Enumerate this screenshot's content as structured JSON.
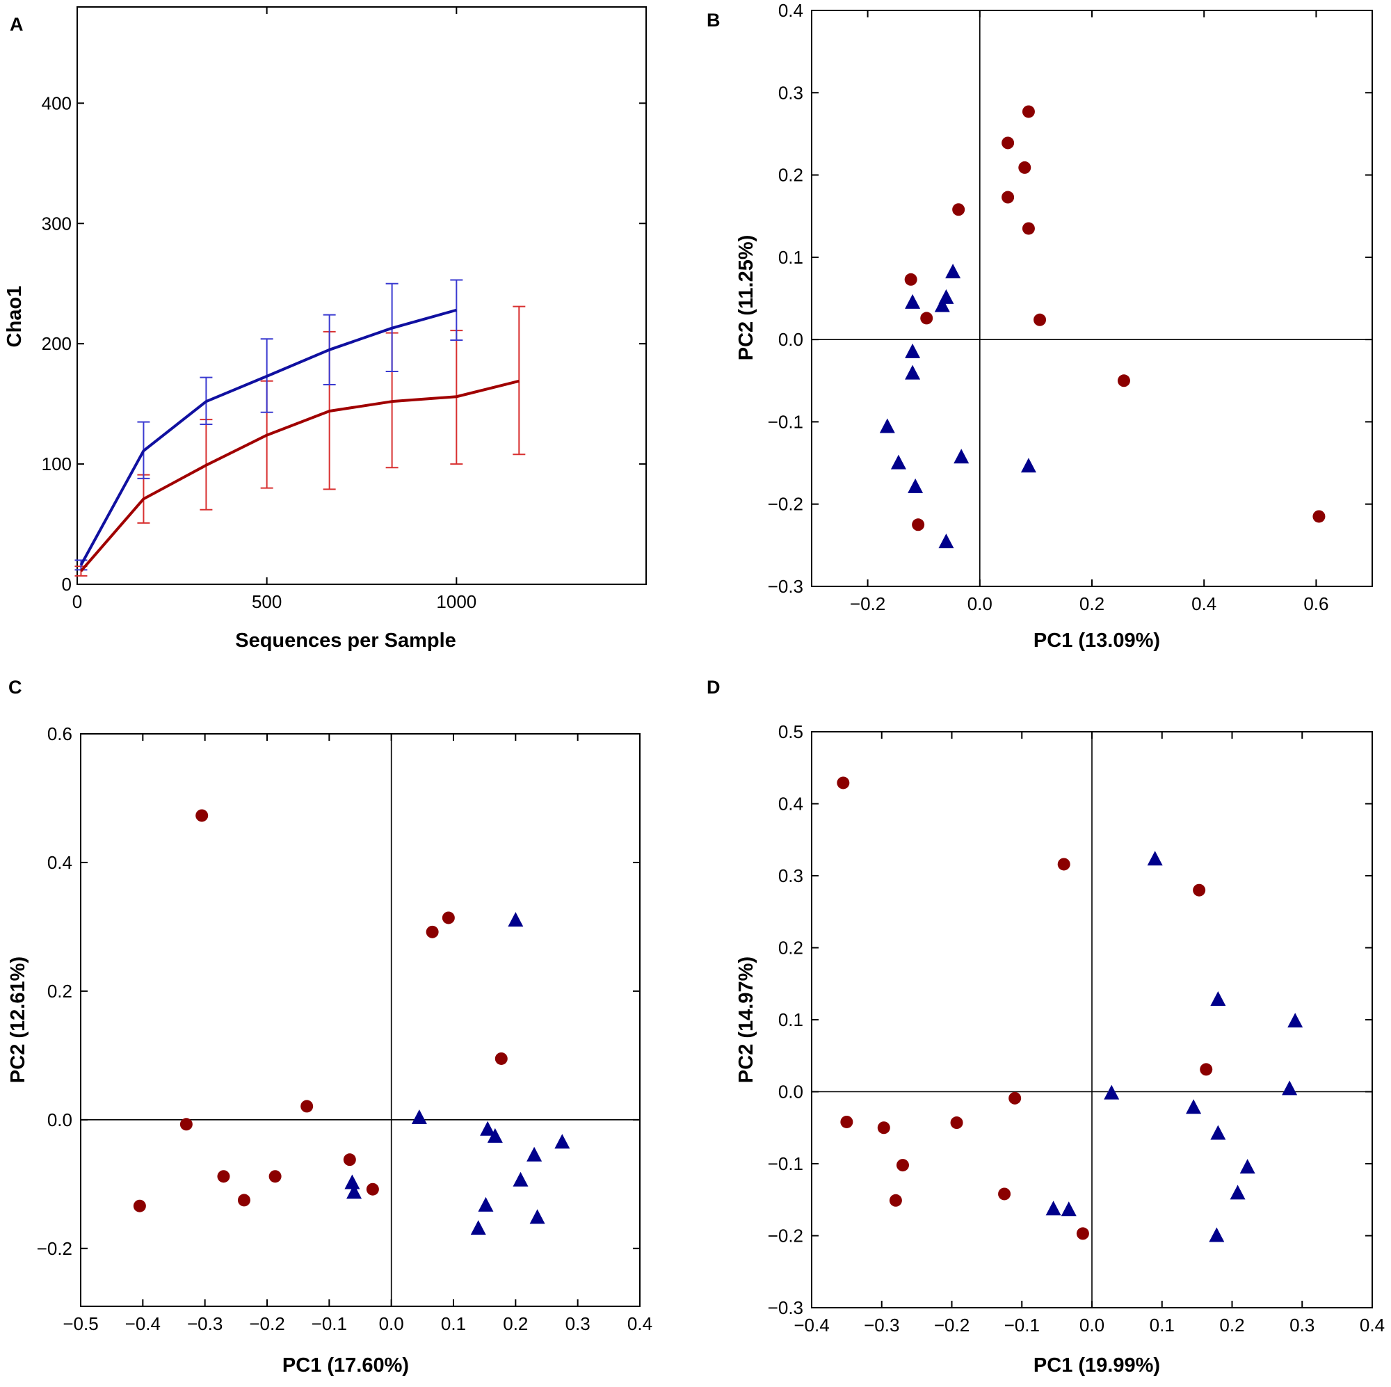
{
  "chart_data": [
    {
      "panel": "A",
      "type": "line",
      "xlabel": "Sequences per Sample",
      "ylabel": "Chao1",
      "xlim": [
        0,
        1500
      ],
      "ylim": [
        0,
        480
      ],
      "xticks": [
        0,
        500,
        1000
      ],
      "yticks": [
        0,
        100,
        200,
        300,
        400
      ],
      "grid": false,
      "colors": {
        "blue": "#1010a0",
        "red": "#a00000",
        "blue_err": "#3a3ad0",
        "red_err": "#d83030"
      },
      "series": [
        {
          "name": "blue",
          "x": [
            10,
            175,
            340,
            500,
            665,
            830,
            1000
          ],
          "y": [
            16,
            111,
            152,
            173,
            195,
            213,
            228
          ],
          "err_low": [
            12,
            88,
            133,
            143,
            166,
            177,
            203
          ],
          "err_high": [
            20,
            135,
            172,
            204,
            224,
            250,
            253
          ]
        },
        {
          "name": "red",
          "x": [
            10,
            175,
            340,
            500,
            665,
            830,
            1000,
            1165
          ],
          "y": [
            11,
            71,
            99,
            124,
            144,
            152,
            156,
            169
          ],
          "err_low": [
            7,
            51,
            62,
            80,
            79,
            97,
            100,
            108
          ],
          "err_high": [
            15,
            91,
            137,
            169,
            210,
            209,
            211,
            231
          ]
        }
      ]
    },
    {
      "panel": "B",
      "type": "scatter",
      "xlabel": "PC1 (13.09%)",
      "ylabel": "PC2 (11.25%)",
      "xlim": [
        -0.3,
        0.7
      ],
      "ylim": [
        -0.3,
        0.4
      ],
      "xticks": [
        -0.2,
        0.0,
        0.2,
        0.4,
        0.6
      ],
      "yticks": [
        -0.3,
        -0.2,
        -0.1,
        0.0,
        0.1,
        0.2,
        0.3,
        0.4
      ],
      "xtick_labels": [
        "−0.2",
        "0.0",
        "0.2",
        "0.4",
        "0.6"
      ],
      "ytick_labels": [
        "−0.3",
        "−0.2",
        "−0.1",
        "0.0",
        "0.1",
        "0.2",
        "0.3",
        "0.4"
      ],
      "series": [
        {
          "name": "red-circles",
          "marker": "circle",
          "color": "#8b0000",
          "x": [
            0.087,
            0.05,
            0.08,
            0.05,
            -0.038,
            0.087,
            -0.123,
            -0.095,
            0.107,
            0.257,
            -0.11,
            0.605
          ],
          "y": [
            0.277,
            0.239,
            0.209,
            0.173,
            0.158,
            0.135,
            0.073,
            0.026,
            0.024,
            -0.05,
            -0.225,
            -0.215
          ]
        },
        {
          "name": "blue-triangles",
          "marker": "triangle",
          "color": "#00008b",
          "x": [
            -0.048,
            -0.06,
            -0.067,
            -0.12,
            -0.12,
            -0.12,
            -0.165,
            -0.033,
            -0.145,
            -0.115,
            0.087,
            -0.06
          ],
          "y": [
            0.082,
            0.051,
            0.041,
            0.045,
            -0.015,
            -0.041,
            -0.106,
            -0.143,
            -0.15,
            -0.179,
            -0.154,
            -0.246
          ]
        }
      ]
    },
    {
      "panel": "C",
      "type": "scatter",
      "xlabel": "PC1 (17.60%)",
      "ylabel": "PC2 (12.61%)",
      "xlim": [
        -0.5,
        0.4
      ],
      "ylim": [
        -0.29,
        0.6
      ],
      "xticks": [
        -0.5,
        -0.4,
        -0.3,
        -0.2,
        -0.1,
        0.0,
        0.1,
        0.2,
        0.3,
        0.4
      ],
      "yticks": [
        -0.2,
        0.0,
        0.2,
        0.4,
        0.6
      ],
      "xtick_labels": [
        "−0.5",
        "−0.4",
        "−0.3",
        "−0.2",
        "−0.1",
        "0.0",
        "0.1",
        "0.2",
        "0.3",
        "0.4"
      ],
      "ytick_labels": [
        "−0.2",
        "0.0",
        "0.2",
        "0.4",
        "0.6"
      ],
      "series": [
        {
          "name": "red-circles",
          "marker": "circle",
          "color": "#8b0000",
          "x": [
            -0.305,
            0.092,
            0.066,
            0.177,
            -0.136,
            -0.33,
            -0.27,
            -0.187,
            -0.067,
            -0.03,
            -0.237,
            -0.405
          ],
          "y": [
            0.473,
            0.314,
            0.292,
            0.095,
            0.021,
            -0.007,
            -0.088,
            -0.088,
            -0.062,
            -0.108,
            -0.125,
            -0.134
          ]
        },
        {
          "name": "blue-triangles",
          "marker": "triangle",
          "color": "#00008b",
          "x": [
            0.2,
            0.045,
            0.155,
            0.167,
            0.275,
            0.23,
            0.208,
            -0.063,
            -0.06,
            0.152,
            0.235,
            0.14
          ],
          "y": [
            0.31,
            0.003,
            -0.015,
            -0.026,
            -0.035,
            -0.055,
            -0.094,
            -0.098,
            -0.113,
            -0.133,
            -0.152,
            -0.169
          ]
        }
      ]
    },
    {
      "panel": "D",
      "type": "scatter",
      "xlabel": "PC1 (19.99%)",
      "ylabel": "PC2 (14.97%)",
      "xlim": [
        -0.4,
        0.4
      ],
      "ylim": [
        -0.3,
        0.5
      ],
      "xticks": [
        -0.4,
        -0.3,
        -0.2,
        -0.1,
        0.0,
        0.1,
        0.2,
        0.3,
        0.4
      ],
      "yticks": [
        -0.3,
        -0.2,
        -0.1,
        0.0,
        0.1,
        0.2,
        0.3,
        0.4,
        0.5
      ],
      "xtick_labels": [
        "−0.4",
        "−0.3",
        "−0.2",
        "−0.1",
        "0.0",
        "0.1",
        "0.2",
        "0.3",
        "0.4"
      ],
      "ytick_labels": [
        "−0.3",
        "−0.2",
        "−0.1",
        "0.0",
        "0.1",
        "0.2",
        "0.3",
        "0.4",
        "0.5"
      ],
      "series": [
        {
          "name": "red-circles",
          "marker": "circle",
          "color": "#8b0000",
          "x": [
            -0.355,
            -0.04,
            0.153,
            0.163,
            -0.11,
            -0.35,
            -0.297,
            -0.193,
            -0.27,
            -0.125,
            -0.28,
            -0.013
          ],
          "y": [
            0.429,
            0.316,
            0.28,
            0.031,
            -0.009,
            -0.042,
            -0.05,
            -0.043,
            -0.102,
            -0.142,
            -0.151,
            -0.197
          ]
        },
        {
          "name": "blue-triangles",
          "marker": "triangle",
          "color": "#00008b",
          "x": [
            0.09,
            0.18,
            0.29,
            0.028,
            0.282,
            0.145,
            0.18,
            0.222,
            0.208,
            -0.055,
            -0.033,
            0.178
          ],
          "y": [
            0.323,
            0.128,
            0.098,
            -0.002,
            0.004,
            -0.022,
            -0.058,
            -0.105,
            -0.141,
            -0.163,
            -0.164,
            -0.2
          ]
        }
      ]
    }
  ]
}
